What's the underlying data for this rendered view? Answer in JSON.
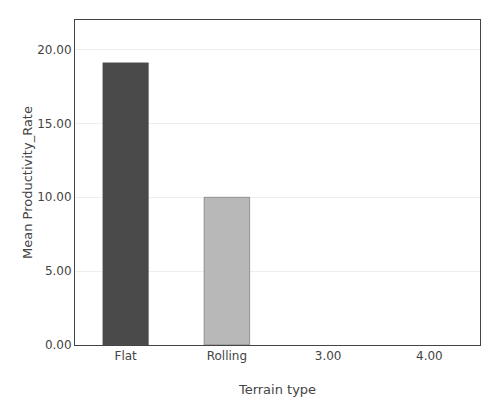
{
  "chart_data": {
    "type": "bar",
    "categories": [
      "Flat",
      "Rolling",
      "3.00",
      "4.00"
    ],
    "values": [
      19.1,
      10.0,
      0,
      0
    ],
    "colors": [
      "#4a4a4a",
      "#b8b8b8",
      null,
      null
    ],
    "xlabel": "Terrain type",
    "ylabel": "Mean Productivity_Rate",
    "ylim": [
      0,
      22
    ],
    "yticks": [
      {
        "value": 0,
        "label": "0.00"
      },
      {
        "value": 5,
        "label": "5.00"
      },
      {
        "value": 10,
        "label": "10.00"
      },
      {
        "value": 15,
        "label": "15.00"
      },
      {
        "value": 20,
        "label": "20.00"
      }
    ],
    "grid": true
  }
}
